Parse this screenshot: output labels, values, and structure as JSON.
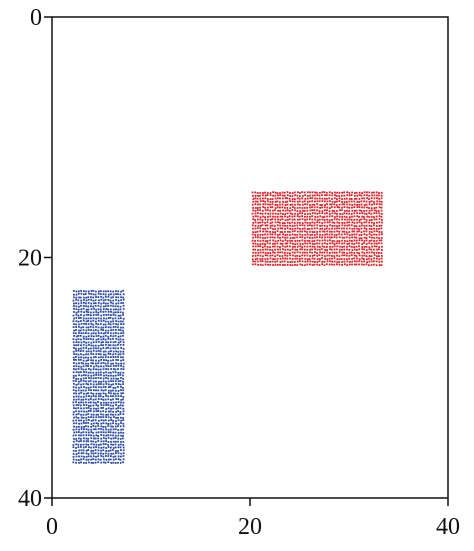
{
  "chart_data": {
    "type": "scatter",
    "title": "",
    "xlabel": "",
    "ylabel": "",
    "xlim": [
      0,
      40
    ],
    "ylim": [
      0,
      40
    ],
    "y_inverted": true,
    "grid": false,
    "x_ticks": [
      {
        "value": 0,
        "label": "0"
      },
      {
        "value": 20,
        "label": "20"
      },
      {
        "value": 40,
        "label": "40"
      }
    ],
    "y_ticks": [
      {
        "value": 0,
        "label": "0"
      },
      {
        "value": 20,
        "label": "20"
      },
      {
        "value": 40,
        "label": "40"
      }
    ],
    "series": [
      {
        "color": "#2b4aa8",
        "marker_spacing": 0.25,
        "regions": [
          {
            "x": [
              2.2,
              7.3
            ],
            "y": [
              22.8,
              37.1
            ]
          }
        ]
      },
      {
        "color": "#e51c24",
        "marker_spacing": 0.25,
        "regions": [
          {
            "x": [
              20.3,
              33.3
            ],
            "y": [
              14.6,
              20.7
            ]
          }
        ]
      }
    ]
  }
}
